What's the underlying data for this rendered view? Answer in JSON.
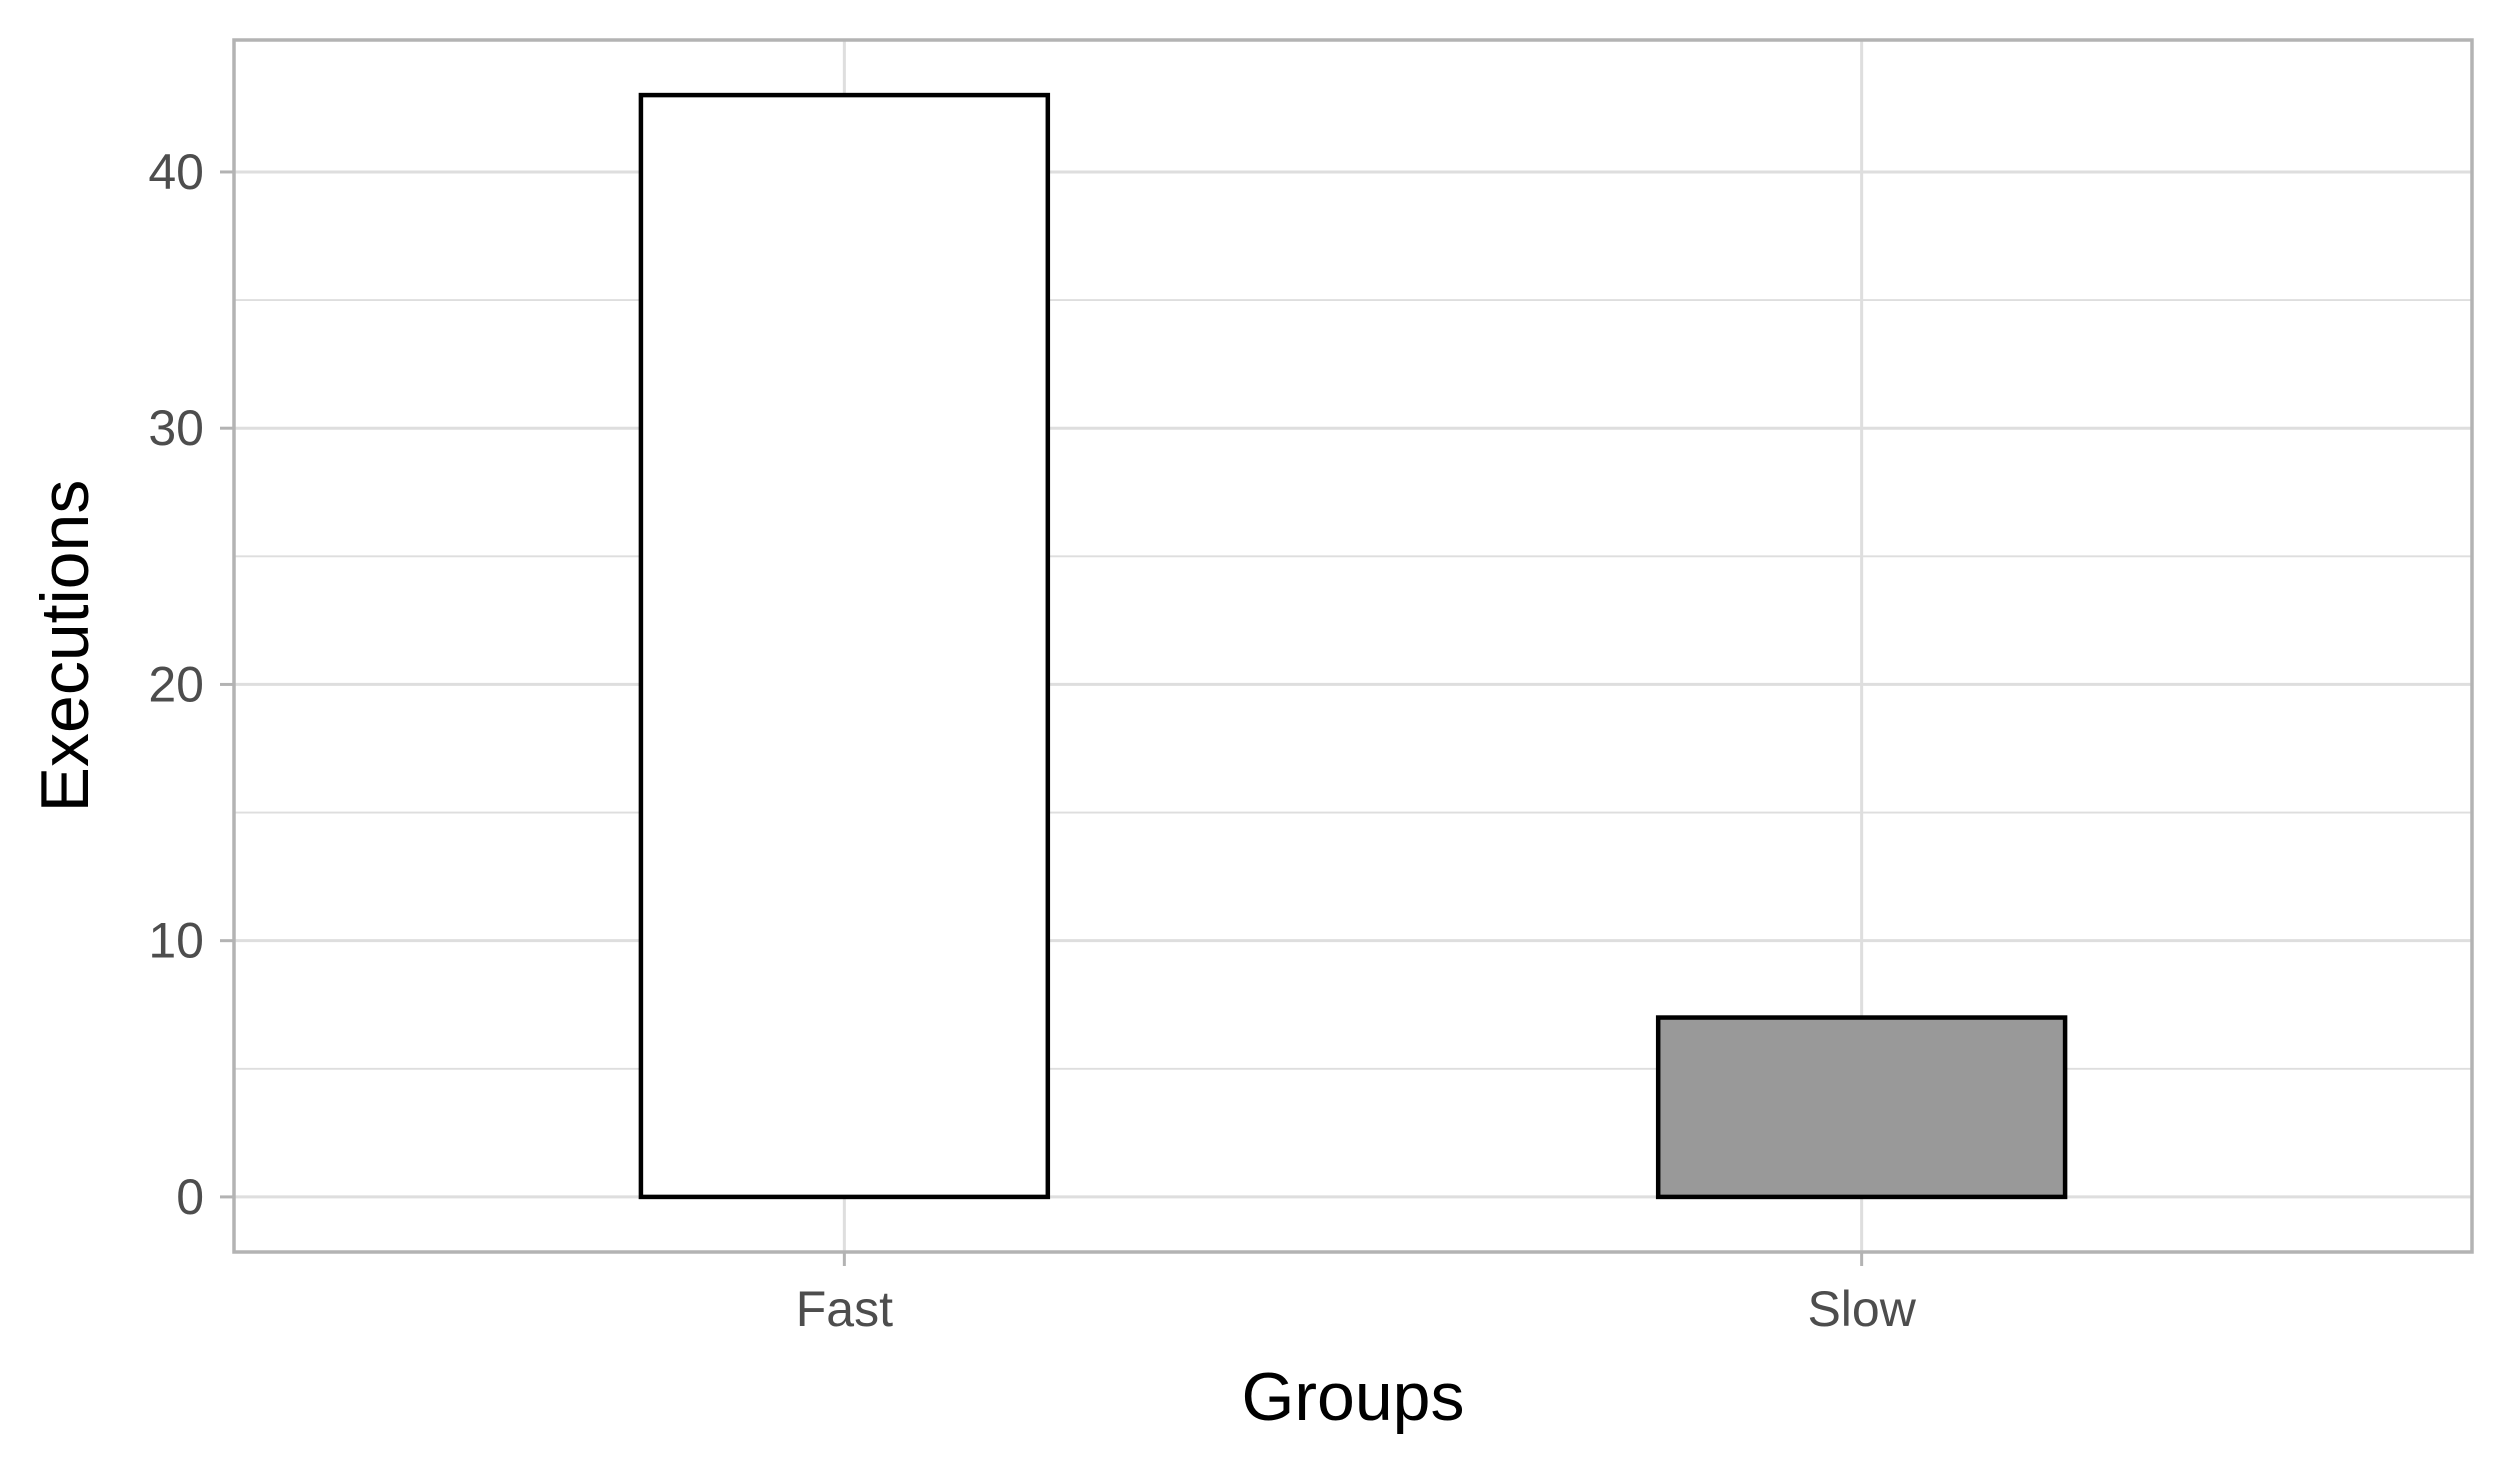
{
  "chart_data": {
    "type": "bar",
    "categories": [
      "Fast",
      "Slow"
    ],
    "values": [
      43,
      7
    ],
    "title": "",
    "xlabel": "Groups",
    "ylabel": "Executions",
    "ylim": [
      -2.15,
      45.15
    ],
    "yticks": [
      0,
      10,
      20,
      30,
      40
    ],
    "y_minor_ticks": [
      5,
      15,
      25,
      35
    ],
    "grid": true,
    "bar_colors": [
      "#ffffff",
      "#999999"
    ],
    "bar_outline_color": "#000000",
    "grid_color": "#dedede",
    "panel_border_color": "#b3b3b3",
    "tick_label_color": "#4d4d4d"
  }
}
